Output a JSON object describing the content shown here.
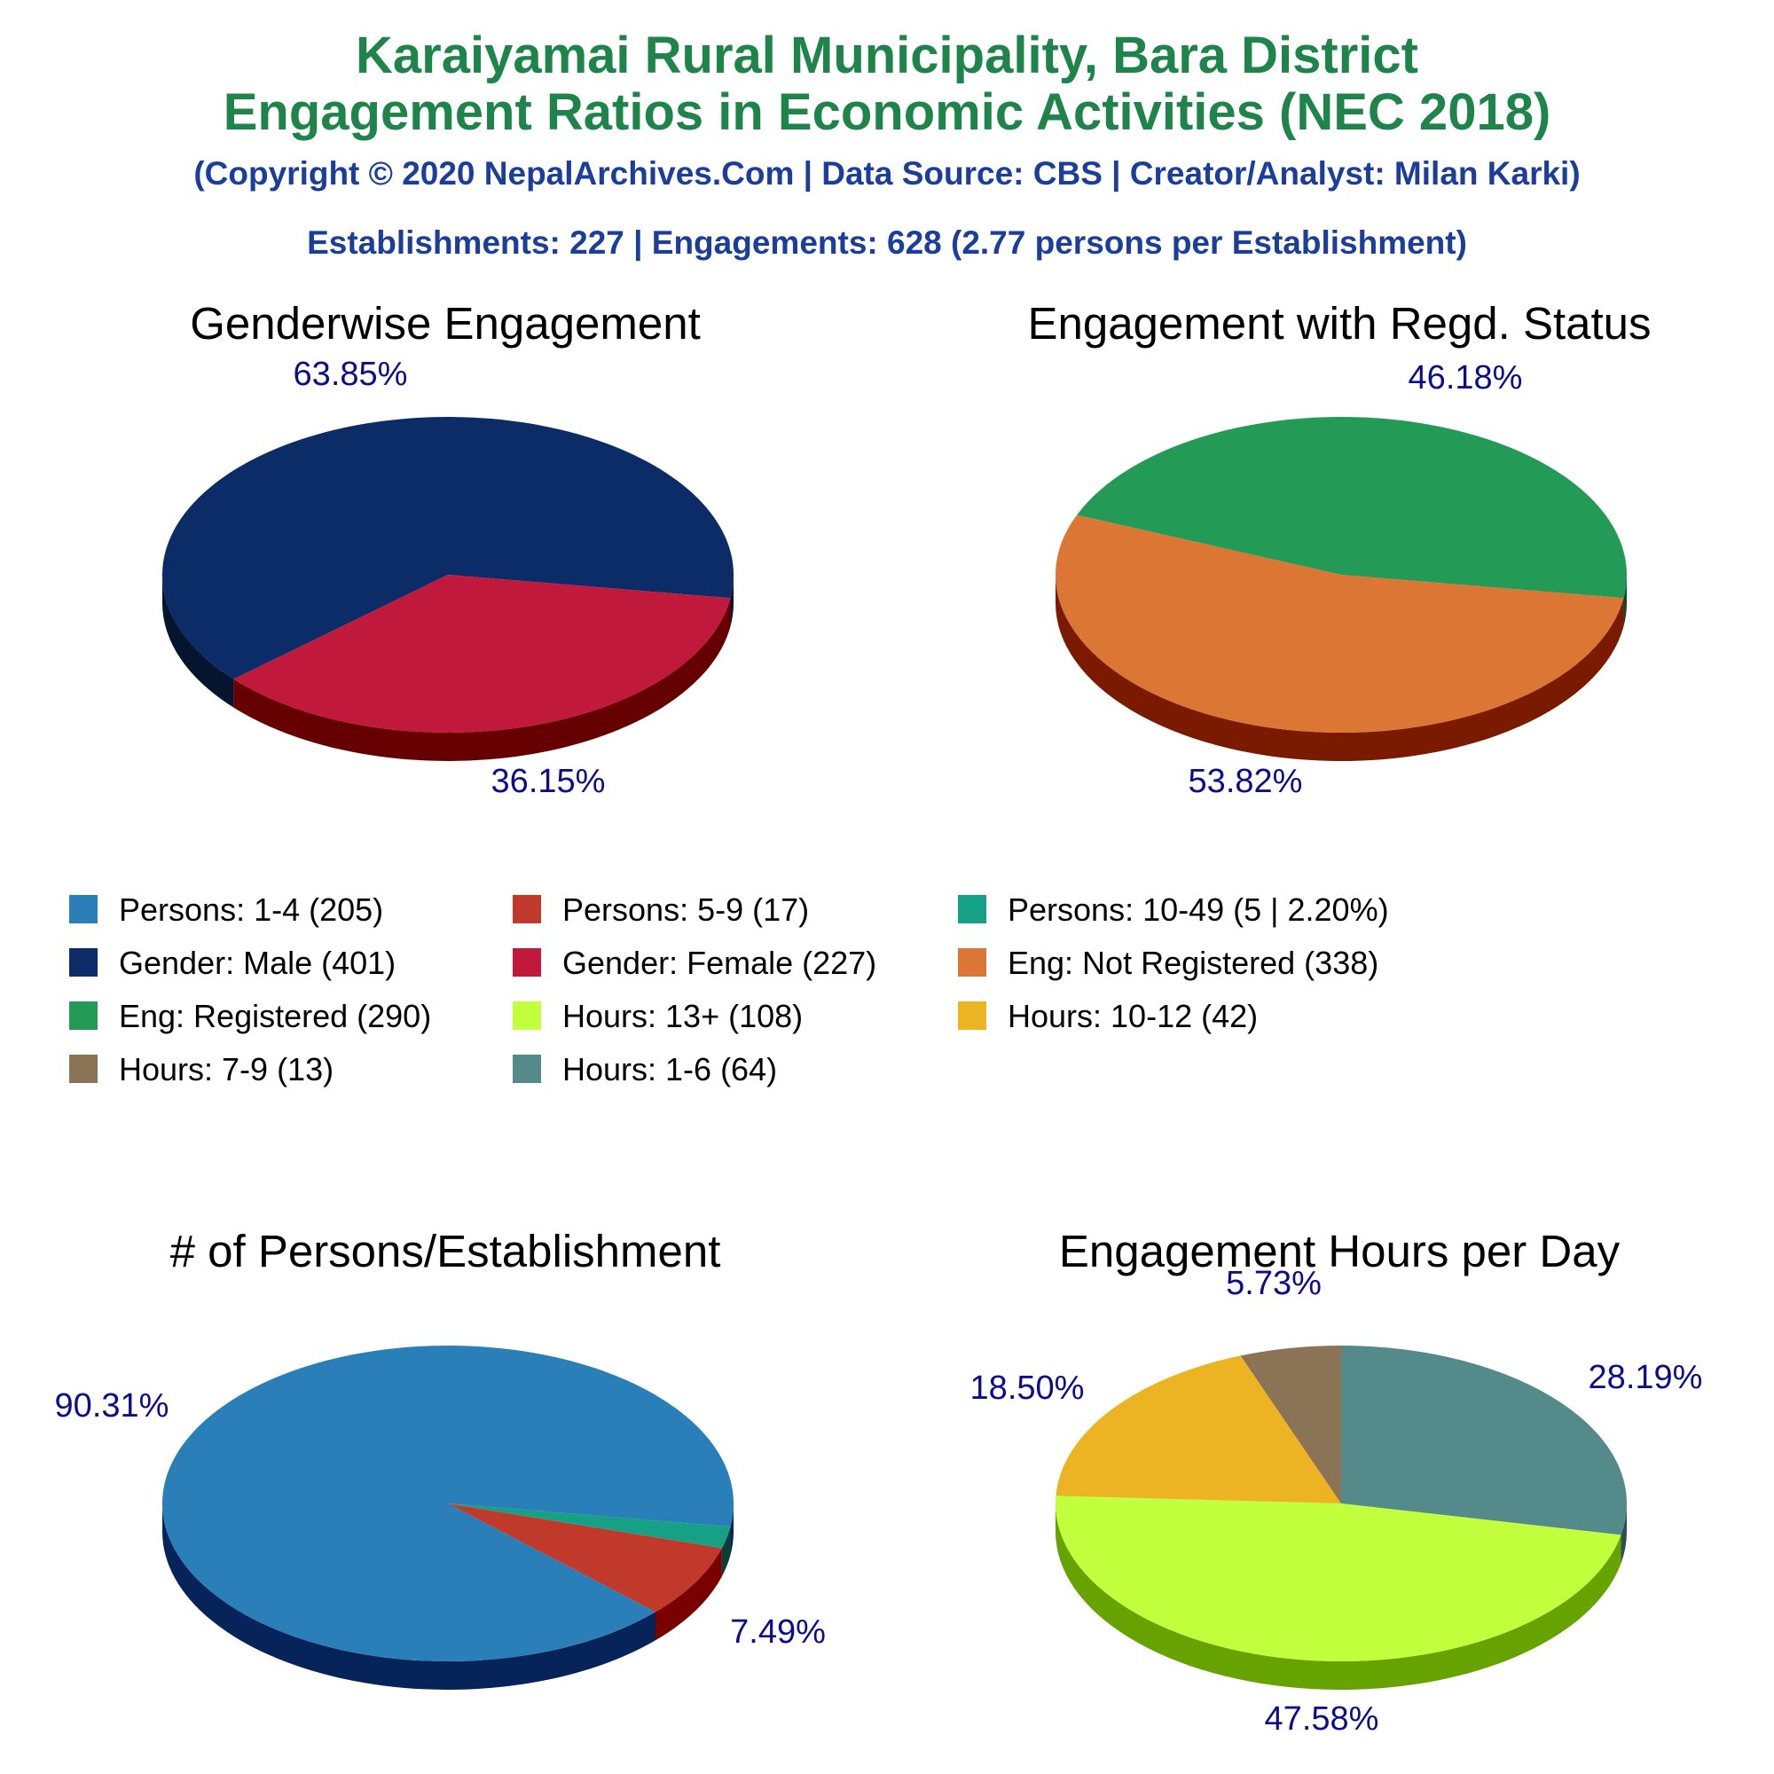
{
  "header": {
    "title_line1": "Karaiyamai Rural Municipality, Bara District",
    "title_line2": "Engagement Ratios in Economic Activities (NEC 2018)",
    "copyright": "(Copyright © 2020 NepalArchives.Com | Data Source: CBS | Creator/Analyst: Milan Karki)",
    "stats": "Establishments: 227 | Engagements: 628 (2.77 persons per Establishment)"
  },
  "colors": {
    "title": "#1e8449",
    "subtitle": "#1a3e99",
    "percent_label": "#0d0d8c"
  },
  "legend": [
    {
      "label": "Persons: 1-4 (205)",
      "color": "#2a7fb8"
    },
    {
      "label": "Persons: 5-9 (17)",
      "color": "#c0392b"
    },
    {
      "label": "Persons: 10-49 (5 | 2.20%)",
      "color": "#16a085"
    },
    {
      "label": "Gender: Male (401)",
      "color": "#0b2c67"
    },
    {
      "label": "Gender: Female (227)",
      "color": "#c0193c"
    },
    {
      "label": "Eng: Not Registered (338)",
      "color": "#db7634"
    },
    {
      "label": "Eng: Registered (290)",
      "color": "#239b56"
    },
    {
      "label": "Hours: 13+ (108)",
      "color": "#c2ff3d"
    },
    {
      "label": "Hours: 10-12 (42)",
      "color": "#ecb322"
    },
    {
      "label": "Hours: 7-9 (13)",
      "color": "#8b7355"
    },
    {
      "label": "Hours: 1-6 (64)",
      "color": "#548a8a"
    }
  ],
  "chart_data": [
    {
      "type": "pie",
      "title": "Genderwise Engagement",
      "slices": [
        {
          "name": "Gender: Male",
          "value": 401,
          "percent_label": "63.85%",
          "color": "#0b2c67",
          "side": "#05142f"
        },
        {
          "name": "Gender: Female",
          "value": 227,
          "percent_label": "36.15%",
          "color": "#c0193c",
          "side": "#660000"
        }
      ]
    },
    {
      "type": "pie",
      "title": "Engagement with Regd. Status",
      "slices": [
        {
          "name": "Eng: Registered",
          "value": 290,
          "percent_label": "46.18%",
          "color": "#239b56",
          "side": "#0f4a26"
        },
        {
          "name": "Eng: Not Registered",
          "value": 338,
          "percent_label": "53.82%",
          "color": "#db7634",
          "side": "#7a1a00"
        }
      ]
    },
    {
      "type": "pie",
      "title": "# of Persons/Establishment",
      "slices": [
        {
          "name": "Persons: 1-4",
          "value": 205,
          "percent_label": "90.31%",
          "color": "#2a7fb8",
          "side": "#06245a"
        },
        {
          "name": "Persons: 5-9",
          "value": 17,
          "percent_label": "7.49%",
          "color": "#c0392b",
          "side": "#7a0000"
        },
        {
          "name": "Persons: 10-49",
          "value": 5,
          "percent_label": "",
          "color": "#16a085",
          "side": "#0a3f36"
        }
      ]
    },
    {
      "type": "pie",
      "title": "Engagement Hours per Day",
      "slices": [
        {
          "name": "Hours: 1-6",
          "value": 64,
          "percent_label": "28.19%",
          "color": "#548a8a",
          "side": "#2e4f4f"
        },
        {
          "name": "Hours: 13+",
          "value": 108,
          "percent_label": "47.58%",
          "color": "#c2ff3d",
          "side": "#66a300"
        },
        {
          "name": "Hours: 10-12",
          "value": 42,
          "percent_label": "18.50%",
          "color": "#ecb322",
          "side": "#9a6f00"
        },
        {
          "name": "Hours: 7-9",
          "value": 13,
          "percent_label": "5.73%",
          "color": "#8b7355",
          "side": "#4a3b26"
        }
      ]
    }
  ]
}
